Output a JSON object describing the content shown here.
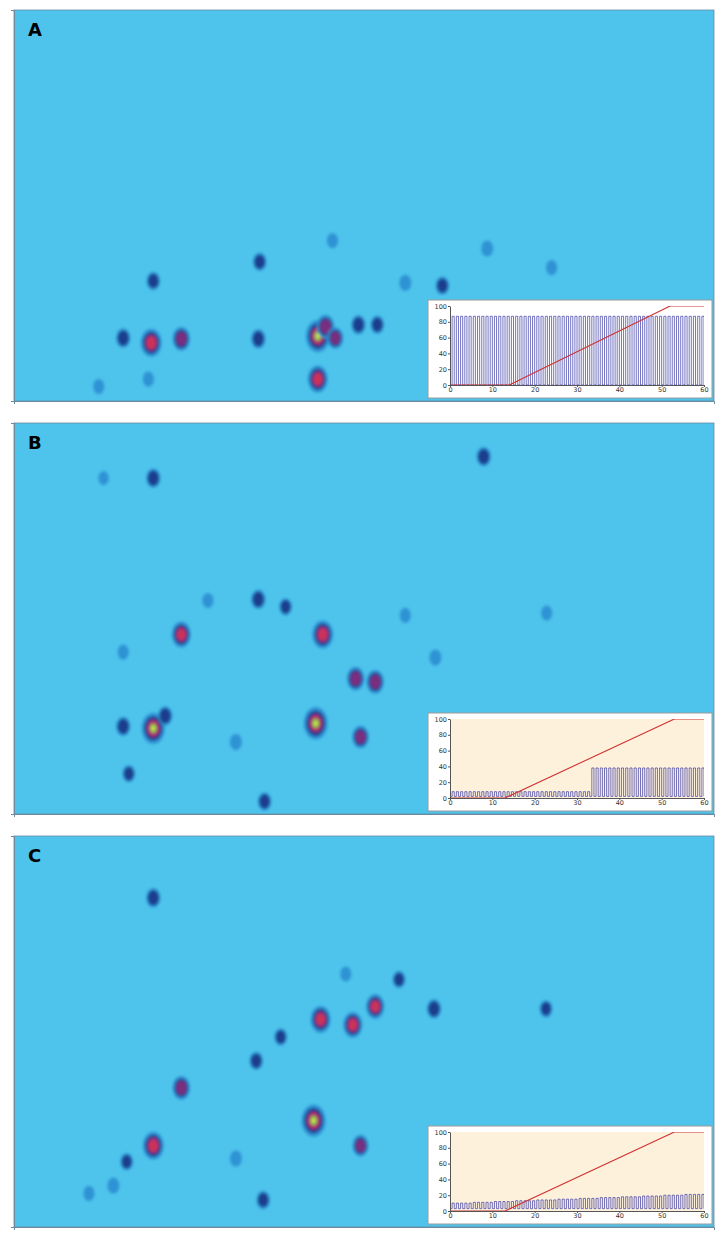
{
  "chart_data": [
    {
      "type": "contour",
      "title": "A",
      "xlim": [
        0,
        100
      ],
      "ylim": [
        0,
        100
      ],
      "tick_labels": false,
      "spots": {
        "x": [
          19.6,
          23.9,
          15.6,
          34.9,
          43.4,
          44.5,
          43.4,
          45.9,
          49.2,
          51.9,
          19.9,
          35.1,
          61.2,
          55.9,
          67.6,
          76.8,
          45.5,
          12.1,
          19.2
        ],
        "y": [
          14.9,
          15.9,
          16.1,
          15.9,
          16.6,
          19.0,
          5.6,
          16.1,
          19.5,
          19.5,
          30.7,
          35.6,
          29.5,
          30.2,
          39.0,
          34.1,
          41.0,
          3.7,
          5.6
        ],
        "intensity": [
          0.8,
          0.6,
          0.4,
          0.4,
          1.0,
          0.6,
          0.75,
          0.5,
          0.4,
          0.35,
          0.35,
          0.35,
          0.35,
          0.25,
          0.25,
          0.2,
          0.2,
          0.2,
          0.2
        ]
      },
      "inset": {
        "type": "line",
        "xlim": [
          0,
          60
        ],
        "ylim": [
          0,
          100
        ],
        "xticks": [
          0,
          10,
          20,
          30,
          40,
          50,
          60
        ],
        "yticks": [
          0,
          20,
          40,
          60,
          80,
          100
        ],
        "series": [
          {
            "color": "#3a3aa8",
            "line_style": "step",
            "x": [
              0,
              0.5,
              1,
              1.5,
              2,
              2.5,
              3,
              3.5,
              4,
              4.5,
              5,
              5.5,
              6,
              6.5,
              7,
              7.5,
              8,
              8.5,
              9,
              9.5,
              10,
              10.5,
              11,
              11.5,
              12,
              12.5,
              13,
              13.5,
              14,
              14.5,
              15,
              15.5,
              16,
              16.5,
              17,
              17.5,
              18,
              18.5,
              19,
              19.5,
              20,
              20.5,
              21,
              21.5,
              22,
              22.5,
              23,
              23.5,
              24,
              24.5,
              25,
              25.5,
              26,
              26.5,
              27,
              27.5,
              28,
              28.5,
              29,
              29.5,
              30,
              30.5,
              31,
              31.5,
              32,
              32.5,
              33,
              33.5,
              34,
              34.5,
              35,
              35.5,
              36,
              36.5,
              37,
              37.5,
              38,
              38.5,
              39,
              39.5,
              40,
              40.5,
              41,
              41.5,
              42,
              42.5,
              43,
              43.5,
              44,
              44.5,
              45,
              45.5,
              46,
              46.5,
              47,
              47.5,
              48,
              48.5,
              49,
              49.5,
              50,
              50.5,
              51,
              51.5,
              52,
              52.5,
              53,
              53.5,
              54,
              54.5,
              55,
              55.5,
              56,
              56.5,
              57,
              57.5,
              58,
              58.5,
              59,
              59.5,
              60
            ],
            "values": [
              0,
              87,
              0,
              87,
              0,
              87,
              0,
              87,
              0,
              87,
              0,
              87,
              0,
              87,
              0,
              87,
              0,
              87,
              0,
              87,
              0,
              87,
              0,
              87,
              0,
              87,
              0,
              87,
              0,
              87,
              0,
              87,
              0,
              87,
              0,
              87,
              0,
              87,
              0,
              87,
              0,
              87,
              0,
              87,
              0,
              87,
              0,
              87,
              0,
              87,
              0,
              87,
              0,
              87,
              0,
              87,
              0,
              87,
              0,
              87,
              0,
              87,
              0,
              87,
              0,
              87,
              0,
              87,
              0,
              87,
              0,
              87,
              0,
              87,
              0,
              87,
              0,
              87,
              0,
              87,
              0,
              87,
              0,
              87,
              0,
              87,
              0,
              87,
              0,
              87,
              0,
              87,
              0,
              87,
              0,
              87,
              0,
              87,
              0,
              87,
              0,
              87,
              0,
              87,
              0,
              87,
              0,
              87,
              0,
              87,
              0,
              87,
              0,
              87,
              0,
              87,
              0,
              87,
              0,
              87,
              0
            ]
          },
          {
            "color": "#d03030",
            "line_style": "solid",
            "x": [
              0,
              14,
              52,
              60
            ],
            "values": [
              0,
              0,
              100,
              100
            ]
          }
        ]
      }
    },
    {
      "type": "contour",
      "title": "B",
      "xlim": [
        0,
        100
      ],
      "ylim": [
        0,
        100
      ],
      "tick_labels": false,
      "spots": {
        "x": [
          19.9,
          23.9,
          43.1,
          44.1,
          48.8,
          51.6,
          49.5,
          15.6,
          21.6,
          19.9,
          34.9,
          38.8,
          67.1,
          35.8,
          16.4,
          31.7,
          60.2,
          55.9,
          76.1,
          27.7,
          15.6,
          12.8
        ],
        "y": [
          21.9,
          45.9,
          23.2,
          45.9,
          34.6,
          33.8,
          19.7,
          22.4,
          25.1,
          85.9,
          54.9,
          53.0,
          91.4,
          3.2,
          10.3,
          18.4,
          40.0,
          50.8,
          51.4,
          54.6,
          41.4,
          85.9
        ],
        "intensity": [
          0.95,
          0.7,
          1.0,
          0.8,
          0.6,
          0.6,
          0.55,
          0.4,
          0.4,
          0.4,
          0.4,
          0.3,
          0.4,
          0.35,
          0.3,
          0.25,
          0.25,
          0.2,
          0.2,
          0.2,
          0.2,
          0.15
        ]
      },
      "inset": {
        "type": "line",
        "xlim": [
          0,
          60
        ],
        "ylim": [
          0,
          100
        ],
        "xticks": [
          0,
          10,
          20,
          30,
          40,
          50,
          60
        ],
        "yticks": [
          0,
          20,
          40,
          60,
          80,
          100
        ],
        "series": [
          {
            "color": "#3a3aa8",
            "line_style": "step",
            "x": [
              0,
              0.5,
              1,
              1.5,
              2,
              2.5,
              3,
              3.5,
              4,
              4.5,
              5,
              5.5,
              6,
              6.5,
              7,
              7.5,
              8,
              8.5,
              9,
              9.5,
              10,
              10.5,
              11,
              11.5,
              12,
              12.5,
              13,
              13.5,
              14,
              14.5,
              15,
              15.5,
              16,
              16.5,
              17,
              17.5,
              18,
              18.5,
              19,
              19.5,
              20,
              20.5,
              21,
              21.5,
              22,
              22.5,
              23,
              23.5,
              24,
              24.5,
              25,
              25.5,
              26,
              26.5,
              27,
              27.5,
              28,
              28.5,
              29,
              29.5,
              30,
              30.5,
              31,
              31.5,
              32,
              32.5,
              33,
              33.5,
              34,
              34.5,
              35,
              35.5,
              36,
              36.5,
              37,
              37.5,
              38,
              38.5,
              39,
              39.5,
              40,
              40.5,
              41,
              41.5,
              42,
              42.5,
              43,
              43.5,
              44,
              44.5,
              45,
              45.5,
              46,
              46.5,
              47,
              47.5,
              48,
              48.5,
              49,
              49.5,
              50,
              50.5,
              51,
              51.5,
              52,
              52.5,
              53,
              53.5,
              54,
              54.5,
              55,
              55.5,
              56,
              56.5,
              57,
              57.5,
              58,
              58.5,
              59,
              59.5,
              60
            ],
            "values": [
              2,
              8,
              2,
              8,
              2,
              8,
              2,
              8,
              2,
              8,
              2,
              8,
              2,
              8,
              2,
              8,
              2,
              8,
              2,
              8,
              2,
              8,
              2,
              8,
              2,
              8,
              2,
              8,
              2,
              8,
              2,
              8,
              2,
              8,
              2,
              8,
              2,
              8,
              2,
              8,
              2,
              8,
              2,
              8,
              2,
              8,
              2,
              8,
              2,
              8,
              2,
              8,
              2,
              8,
              2,
              8,
              2,
              8,
              2,
              8,
              2,
              8,
              2,
              8,
              2,
              8,
              2,
              38,
              2,
              38,
              2,
              38,
              2,
              38,
              2,
              38,
              2,
              38,
              2,
              38,
              2,
              38,
              2,
              38,
              2,
              38,
              2,
              38,
              2,
              38,
              2,
              38,
              2,
              38,
              2,
              38,
              2,
              38,
              2,
              38,
              2,
              38,
              2,
              38,
              2,
              38,
              2,
              38,
              2,
              38,
              2,
              38,
              2,
              38,
              2,
              38,
              2,
              38,
              2,
              38,
              2
            ]
          },
          {
            "color": "#d03030",
            "line_style": "solid",
            "x": [
              0,
              13,
              53,
              60
            ],
            "values": [
              0,
              0,
              100,
              100
            ]
          }
        ]
      }
    },
    {
      "type": "contour",
      "title": "C",
      "xlim": [
        0,
        100
      ],
      "ylim": [
        0,
        100
      ],
      "tick_labels": false,
      "spots": {
        "x": [
          19.9,
          23.9,
          42.8,
          49.5,
          43.8,
          48.4,
          51.6,
          60.0,
          55.0,
          76.0,
          34.6,
          38.1,
          19.9,
          35.6,
          31.7,
          16.1,
          47.4,
          10.7,
          14.2
        ],
        "y": [
          20.8,
          35.6,
          27.2,
          20.8,
          53.1,
          51.7,
          56.4,
          55.8,
          63.3,
          55.8,
          42.5,
          48.6,
          84.2,
          6.9,
          17.5,
          16.7,
          64.7,
          8.6,
          10.6
        ],
        "intensity": [
          0.8,
          0.6,
          1.0,
          0.5,
          0.75,
          0.7,
          0.65,
          0.4,
          0.3,
          0.3,
          0.35,
          0.3,
          0.4,
          0.35,
          0.25,
          0.3,
          0.2,
          0.2,
          0.25
        ]
      },
      "inset": {
        "type": "line",
        "xlim": [
          0,
          60
        ],
        "ylim": [
          0,
          100
        ],
        "xticks": [
          0,
          10,
          20,
          30,
          40,
          50,
          60
        ],
        "yticks": [
          0,
          20,
          40,
          60,
          80,
          100
        ],
        "series": [
          {
            "color": "#3a3aa8",
            "line_style": "step",
            "x": [
              0,
              0.5,
              1,
              1.5,
              2,
              2.5,
              3,
              3.5,
              4,
              4.5,
              5,
              5.5,
              6,
              6.5,
              7,
              7.5,
              8,
              8.5,
              9,
              9.5,
              10,
              10.5,
              11,
              11.5,
              12,
              12.5,
              13,
              13.5,
              14,
              14.5,
              15,
              15.5,
              16,
              16.5,
              17,
              17.5,
              18,
              18.5,
              19,
              19.5,
              20,
              20.5,
              21,
              21.5,
              22,
              22.5,
              23,
              23.5,
              24,
              24.5,
              25,
              25.5,
              26,
              26.5,
              27,
              27.5,
              28,
              28.5,
              29,
              29.5,
              30,
              30.5,
              31,
              31.5,
              32,
              32.5,
              33,
              33.5,
              34,
              34.5,
              35,
              35.5,
              36,
              36.5,
              37,
              37.5,
              38,
              38.5,
              39,
              39.5,
              40,
              40.5,
              41,
              41.5,
              42,
              42.5,
              43,
              43.5,
              44,
              44.5,
              45,
              45.5,
              46,
              46.5,
              47,
              47.5,
              48,
              48.5,
              49,
              49.5,
              50,
              50.5,
              51,
              51.5,
              52,
              52.5,
              53,
              53.5,
              54,
              54.5,
              55,
              55.5,
              56,
              56.5,
              57,
              57.5,
              58,
              58.5,
              59,
              59.5,
              60
            ],
            "values": [
              3,
              10,
              3,
              10,
              3,
              10,
              3,
              10,
              3,
              10,
              3,
              11,
              3,
              11,
              3,
              11,
              3,
              11,
              3,
              11,
              3,
              12,
              3,
              12,
              3,
              12,
              3,
              12,
              3,
              12,
              3,
              13,
              3,
              13,
              3,
              13,
              3,
              13,
              3,
              13,
              3,
              14,
              3,
              14,
              3,
              14,
              3,
              14,
              3,
              14,
              3,
              15,
              3,
              15,
              3,
              15,
              3,
              15,
              3,
              15,
              3,
              16,
              3,
              16,
              3,
              16,
              3,
              16,
              3,
              16,
              3,
              17,
              3,
              17,
              3,
              17,
              3,
              17,
              3,
              17,
              3,
              18,
              3,
              18,
              3,
              18,
              3,
              18,
              3,
              18,
              3,
              19,
              3,
              19,
              3,
              19,
              3,
              19,
              3,
              19,
              3,
              20,
              3,
              20,
              3,
              20,
              3,
              20,
              3,
              20,
              3,
              21,
              3,
              21,
              3,
              21,
              3,
              21,
              3,
              21,
              3
            ]
          },
          {
            "color": "#d03030",
            "line_style": "solid",
            "x": [
              0,
              13,
              53,
              60
            ],
            "values": [
              0,
              0,
              100,
              100
            ]
          }
        ]
      }
    }
  ]
}
